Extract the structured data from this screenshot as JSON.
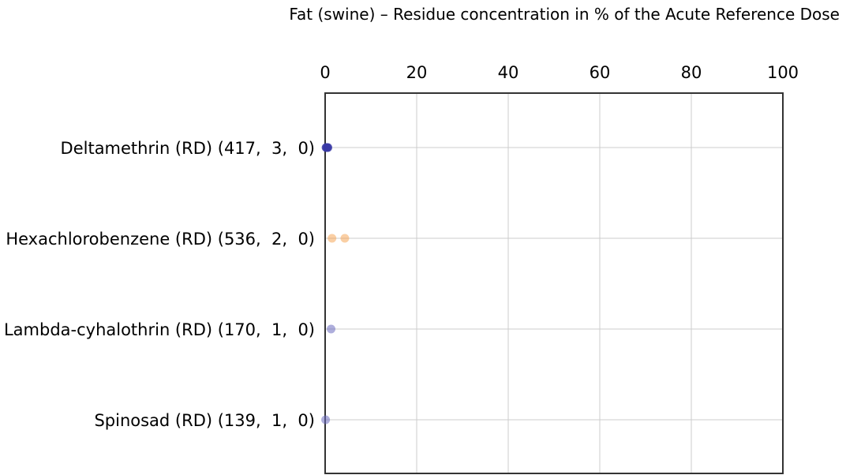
{
  "chart_data": {
    "type": "scatter",
    "title": "Fat (swine) – Residue concentration in % of the Acute Reference Dose",
    "xlabel": "",
    "ylabel": "",
    "xlim": [
      0,
      100
    ],
    "x_ticks": [
      0,
      20,
      40,
      60,
      80,
      100
    ],
    "x_tick_labels": [
      "0",
      "20",
      "40",
      "60",
      "80",
      "100"
    ],
    "x_axis_position": "top",
    "grid": true,
    "categories": [
      "Deltamethrin (RD) (417,  3,  0)",
      "Hexachlorobenzene (RD) (536,  2,  0)",
      "Lambda-cyhalothrin (RD) (170,  1,  0)",
      "Spinosad (RD) (139,  1,  0)"
    ],
    "series": [
      {
        "category": "Deltamethrin (RD) (417,  3,  0)",
        "color": "#3a3aa6",
        "opacity": 0.85,
        "values": [
          0.2,
          0.4,
          0.6
        ]
      },
      {
        "category": "Hexachlorobenzene (RD) (536,  2,  0)",
        "color": "#f5a04a",
        "opacity": 0.5,
        "values": [
          1.5,
          4.3
        ]
      },
      {
        "category": "Lambda-cyhalothrin (RD) (170,  1,  0)",
        "color": "#6b6bbf",
        "opacity": 0.55,
        "values": [
          1.3
        ]
      },
      {
        "category": "Spinosad (RD) (139,  1,  0)",
        "color": "#6b6bbf",
        "opacity": 0.55,
        "values": [
          0.1
        ]
      }
    ]
  }
}
